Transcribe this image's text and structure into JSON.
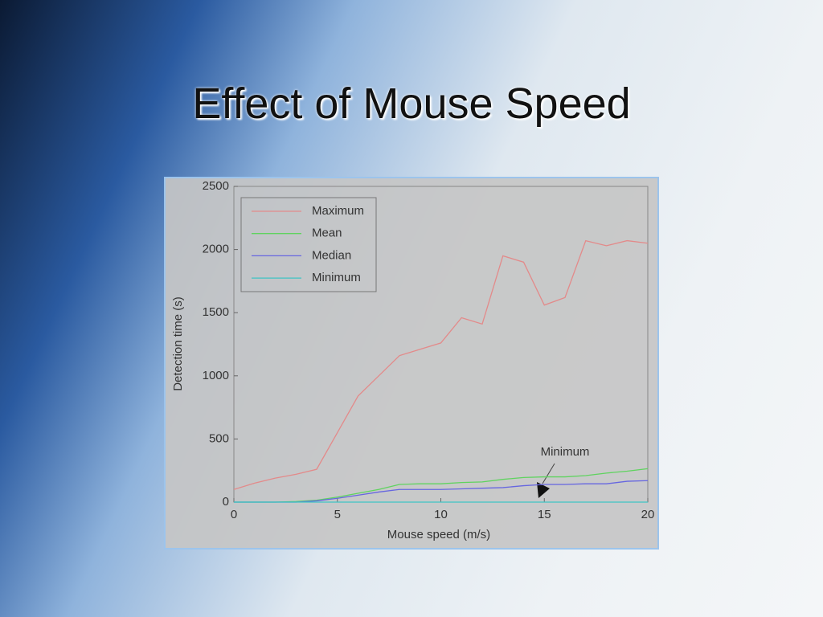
{
  "slide_title": "Effect of Mouse Speed",
  "chart_data": {
    "type": "line",
    "x_label": "Mouse speed (m/s)",
    "y_label": "Detection time (s)",
    "x": [
      0,
      1,
      2,
      3,
      4,
      5,
      6,
      7,
      8,
      9,
      10,
      11,
      12,
      13,
      14,
      15,
      16,
      17,
      18,
      19,
      20
    ],
    "series": [
      {
        "name": "Maximum",
        "color": "#e38a8a",
        "values": [
          100,
          150,
          190,
          220,
          260,
          550,
          840,
          1000,
          1160,
          1210,
          1260,
          1460,
          1410,
          1950,
          1900,
          1560,
          1620,
          2070,
          2030,
          2070,
          2050
        ]
      },
      {
        "name": "Mean",
        "color": "#5fd35f",
        "values": [
          0,
          0,
          0,
          5,
          15,
          40,
          70,
          100,
          140,
          145,
          145,
          155,
          160,
          180,
          195,
          200,
          200,
          210,
          230,
          245,
          265
        ]
      },
      {
        "name": "Median",
        "color": "#6666e0",
        "values": [
          0,
          0,
          0,
          0,
          10,
          30,
          55,
          80,
          100,
          100,
          100,
          105,
          110,
          115,
          130,
          140,
          140,
          145,
          145,
          165,
          170
        ]
      },
      {
        "name": "Minimum",
        "color": "#3fc4c4",
        "values": [
          0,
          0,
          0,
          0,
          0,
          0,
          0,
          0,
          0,
          0,
          0,
          0,
          0,
          0,
          0,
          0,
          0,
          0,
          0,
          0,
          0
        ]
      }
    ],
    "xlim": [
      0,
      20
    ],
    "xticks": [
      0,
      5,
      10,
      15,
      20
    ],
    "ylim": [
      0,
      2500
    ],
    "yticks": [
      0,
      500,
      1000,
      1500,
      2000,
      2500
    ],
    "legend": "upper-left",
    "annotation": "Minimum"
  }
}
